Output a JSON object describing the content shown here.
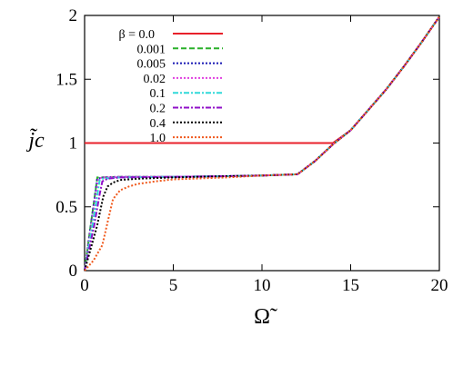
{
  "chart_data": {
    "type": "line",
    "title": "",
    "xlabel": "Ω̃",
    "ylabel": "j̃c",
    "xlim": [
      0,
      20
    ],
    "ylim": [
      0,
      2
    ],
    "xticks": [
      "0",
      "5",
      "10",
      "15",
      "20"
    ],
    "yticks": [
      "0",
      "0.5",
      "1",
      "1.5",
      "2"
    ],
    "grid": false,
    "legend_position": "top-left",
    "series": [
      {
        "name": "β = 0.0",
        "color": "#e8202a",
        "dash": "solid",
        "points": [
          [
            0,
            1.0
          ],
          [
            5,
            1.0
          ],
          [
            10,
            1.0
          ],
          [
            13,
            1.0
          ],
          [
            14,
            1.0
          ],
          [
            14.5,
            1.05
          ],
          [
            15,
            1.1
          ],
          [
            16,
            1.26
          ],
          [
            17,
            1.42
          ],
          [
            18,
            1.6
          ],
          [
            19,
            1.79
          ],
          [
            20,
            1.99
          ]
        ]
      },
      {
        "name": "0.001",
        "color": "#2ab02a",
        "dash": "dashed",
        "points": [
          [
            0,
            0.0
          ],
          [
            0.35,
            0.36
          ],
          [
            0.6,
            0.61
          ],
          [
            0.72,
            0.73
          ],
          [
            1,
            0.73
          ],
          [
            2,
            0.735
          ],
          [
            5,
            0.735
          ],
          [
            8,
            0.74
          ],
          [
            10,
            0.745
          ],
          [
            12,
            0.755
          ],
          [
            13,
            0.86
          ],
          [
            14,
            0.99
          ],
          [
            15,
            1.1
          ],
          [
            16,
            1.26
          ],
          [
            17,
            1.42
          ],
          [
            18,
            1.6
          ],
          [
            19,
            1.79
          ],
          [
            20,
            1.99
          ]
        ]
      },
      {
        "name": "0.005",
        "color": "#1a1ab5",
        "dash": "dotted",
        "points": [
          [
            0,
            0.0
          ],
          [
            0.35,
            0.35
          ],
          [
            0.6,
            0.6
          ],
          [
            0.72,
            0.72
          ],
          [
            1,
            0.73
          ],
          [
            2,
            0.735
          ],
          [
            5,
            0.735
          ],
          [
            8,
            0.74
          ],
          [
            10,
            0.745
          ],
          [
            12,
            0.755
          ],
          [
            13,
            0.86
          ],
          [
            14,
            0.99
          ],
          [
            15,
            1.1
          ],
          [
            16,
            1.26
          ],
          [
            17,
            1.42
          ],
          [
            18,
            1.6
          ],
          [
            19,
            1.79
          ],
          [
            20,
            1.99
          ]
        ]
      },
      {
        "name": "0.02",
        "color": "#e040e0",
        "dash": "dotted",
        "points": [
          [
            0,
            0.0
          ],
          [
            0.4,
            0.36
          ],
          [
            0.65,
            0.6
          ],
          [
            0.78,
            0.72
          ],
          [
            1,
            0.73
          ],
          [
            2,
            0.735
          ],
          [
            5,
            0.735
          ],
          [
            8,
            0.74
          ],
          [
            10,
            0.745
          ],
          [
            12,
            0.755
          ],
          [
            13,
            0.86
          ],
          [
            14,
            0.99
          ],
          [
            15,
            1.1
          ],
          [
            16,
            1.26
          ],
          [
            17,
            1.42
          ],
          [
            18,
            1.6
          ],
          [
            19,
            1.79
          ],
          [
            20,
            1.99
          ]
        ]
      },
      {
        "name": "0.1",
        "color": "#30d8d8",
        "dash": "dashdot",
        "points": [
          [
            0,
            0.0
          ],
          [
            0.45,
            0.36
          ],
          [
            0.75,
            0.62
          ],
          [
            0.85,
            0.71
          ],
          [
            1,
            0.72
          ],
          [
            2,
            0.73
          ],
          [
            5,
            0.735
          ],
          [
            8,
            0.74
          ],
          [
            10,
            0.745
          ],
          [
            12,
            0.755
          ],
          [
            13,
            0.86
          ],
          [
            14,
            0.99
          ],
          [
            15,
            1.1
          ],
          [
            16,
            1.26
          ],
          [
            17,
            1.42
          ],
          [
            18,
            1.6
          ],
          [
            19,
            1.79
          ],
          [
            20,
            1.99
          ]
        ]
      },
      {
        "name": "0.2",
        "color": "#9010c8",
        "dash": "dashdot",
        "points": [
          [
            0,
            0.0
          ],
          [
            0.55,
            0.36
          ],
          [
            0.85,
            0.6
          ],
          [
            1.0,
            0.7
          ],
          [
            1.3,
            0.72
          ],
          [
            2,
            0.73
          ],
          [
            5,
            0.735
          ],
          [
            8,
            0.74
          ],
          [
            10,
            0.745
          ],
          [
            12,
            0.755
          ],
          [
            13,
            0.86
          ],
          [
            14,
            0.99
          ],
          [
            15,
            1.1
          ],
          [
            16,
            1.26
          ],
          [
            17,
            1.42
          ],
          [
            18,
            1.6
          ],
          [
            19,
            1.79
          ],
          [
            20,
            1.99
          ]
        ]
      },
      {
        "name": "0.4",
        "color": "#000000",
        "dash": "dotted",
        "points": [
          [
            0,
            0.0
          ],
          [
            0.7,
            0.35
          ],
          [
            1.05,
            0.58
          ],
          [
            1.3,
            0.66
          ],
          [
            1.6,
            0.69
          ],
          [
            2,
            0.71
          ],
          [
            3,
            0.72
          ],
          [
            5,
            0.73
          ],
          [
            8,
            0.74
          ],
          [
            10,
            0.745
          ],
          [
            12,
            0.755
          ],
          [
            13,
            0.86
          ],
          [
            14,
            0.99
          ],
          [
            15,
            1.1
          ],
          [
            16,
            1.26
          ],
          [
            17,
            1.42
          ],
          [
            18,
            1.6
          ],
          [
            19,
            1.79
          ],
          [
            20,
            1.99
          ]
        ]
      },
      {
        "name": "1.0",
        "color": "#f05a1e",
        "dash": "dotted",
        "points": [
          [
            0,
            0.0
          ],
          [
            0.5,
            0.08
          ],
          [
            1.0,
            0.2
          ],
          [
            1.3,
            0.38
          ],
          [
            1.6,
            0.56
          ],
          [
            2,
            0.63
          ],
          [
            2.5,
            0.66
          ],
          [
            3,
            0.68
          ],
          [
            4,
            0.7
          ],
          [
            5,
            0.715
          ],
          [
            8,
            0.73
          ],
          [
            10,
            0.745
          ],
          [
            12,
            0.755
          ],
          [
            13,
            0.86
          ],
          [
            14,
            0.99
          ],
          [
            15,
            1.1
          ],
          [
            16,
            1.26
          ],
          [
            17,
            1.42
          ],
          [
            18,
            1.6
          ],
          [
            19,
            1.79
          ],
          [
            20,
            1.99
          ]
        ]
      }
    ]
  }
}
